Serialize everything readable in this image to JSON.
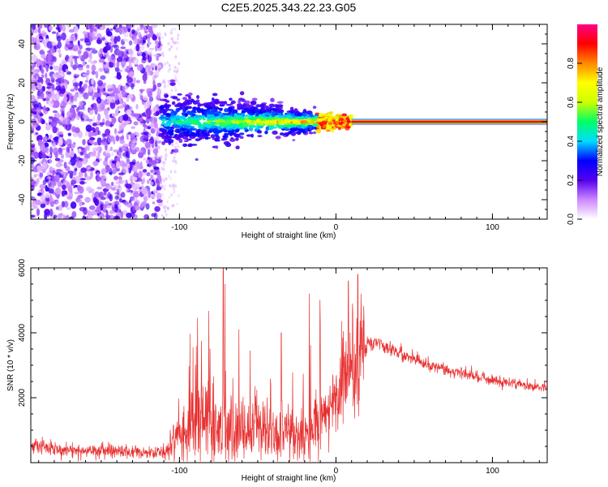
{
  "title": "C2E5.2025.343.22.23.G05",
  "chart_data": [
    {
      "type": "heatmap",
      "xlabel": "Height of straight line (km)",
      "ylabel": "Frequency (Hz)",
      "xlim": [
        -195,
        135
      ],
      "ylim": [
        -50,
        50
      ],
      "xticks": [
        -100,
        0,
        100
      ],
      "yticks": [
        -40,
        -20,
        0,
        20,
        40
      ],
      "description": "Scattered noise for heights below about -112 km; broadening band around 0 Hz between -112 km and 10 km; narrow strong line at 0 Hz from 10 km to 135 km",
      "colorbar": {
        "label": "Normalized spectral amplitude",
        "range": [
          0,
          1
        ],
        "ticks": [
          "0.0",
          "0.2",
          "0.4",
          "0.6",
          "0.8"
        ],
        "colors": [
          "#ffffff",
          "#cc88ff",
          "#5500ee",
          "#0000ff",
          "#00ddff",
          "#00ff66",
          "#ccff00",
          "#ffff00",
          "#ff8800",
          "#ff0000",
          "#ff0088"
        ]
      }
    },
    {
      "type": "line",
      "xlabel": "Height of straight line (km)",
      "ylabel": "SNR (10 * v/v)",
      "xlim": [
        -195,
        135
      ],
      "ylim": [
        0,
        6000
      ],
      "xticks": [
        -100,
        0,
        100
      ],
      "yticks": [
        2000,
        4000,
        6000
      ],
      "color": "#e83030",
      "envelope_points": [
        {
          "x": -195,
          "y": 500
        },
        {
          "x": -180,
          "y": 450
        },
        {
          "x": -160,
          "y": 350
        },
        {
          "x": -140,
          "y": 380
        },
        {
          "x": -120,
          "y": 300
        },
        {
          "x": -108,
          "y": 350
        },
        {
          "x": -100,
          "y": 800
        },
        {
          "x": -90,
          "y": 1100
        },
        {
          "x": -80,
          "y": 1200
        },
        {
          "x": -70,
          "y": 1100
        },
        {
          "x": -60,
          "y": 1000
        },
        {
          "x": -50,
          "y": 1000
        },
        {
          "x": -40,
          "y": 900
        },
        {
          "x": -30,
          "y": 850
        },
        {
          "x": -22,
          "y": 750
        },
        {
          "x": -15,
          "y": 1000
        },
        {
          "x": -5,
          "y": 1600
        },
        {
          "x": 5,
          "y": 2500
        },
        {
          "x": 12,
          "y": 2900
        },
        {
          "x": 20,
          "y": 3600
        },
        {
          "x": 28,
          "y": 3700
        },
        {
          "x": 40,
          "y": 3400
        },
        {
          "x": 60,
          "y": 3000
        },
        {
          "x": 80,
          "y": 2750
        },
        {
          "x": 100,
          "y": 2550
        },
        {
          "x": 120,
          "y": 2400
        },
        {
          "x": 135,
          "y": 2300
        }
      ],
      "peaks": [
        {
          "x": -72,
          "y": 6000
        },
        {
          "x": -71,
          "y": 5500
        },
        {
          "x": -62,
          "y": 4100
        },
        {
          "x": -35,
          "y": 4000
        },
        {
          "x": -17,
          "y": 5200
        },
        {
          "x": 8,
          "y": 5600
        },
        {
          "x": 14,
          "y": 5800
        },
        {
          "x": 16,
          "y": 5200
        }
      ]
    }
  ]
}
